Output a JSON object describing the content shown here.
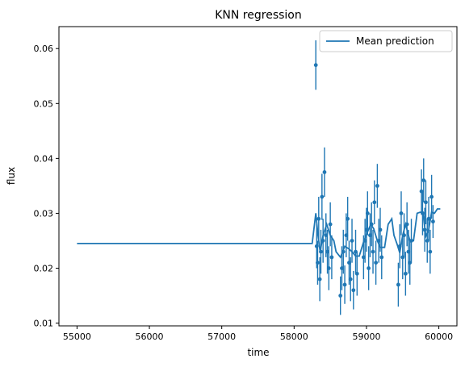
{
  "chart_data": {
    "type": "scatter",
    "title": "KNN regression",
    "xlabel": "time",
    "ylabel": "flux",
    "xlim": [
      54750,
      60250
    ],
    "ylim": [
      0.0095,
      0.064
    ],
    "xticks": [
      55000,
      56000,
      57000,
      58000,
      59000,
      60000
    ],
    "yticks": [
      0.01,
      0.02,
      0.03,
      0.04,
      0.05,
      0.06
    ],
    "ytick_labels": [
      "0.01",
      "0.02",
      "0.03",
      "0.04",
      "0.05",
      "0.06"
    ],
    "grid": false,
    "legend": {
      "placement": "top-right",
      "entries": [
        "Mean prediction"
      ]
    },
    "colors": {
      "series": "#1f77b4"
    },
    "series": [
      {
        "name": "Mean prediction",
        "kind": "line",
        "x": [
          55000,
          58250,
          58300,
          58330,
          58360,
          58400,
          58450,
          58500,
          58550,
          58580,
          58640,
          58700,
          58760,
          58800,
          58850,
          58900,
          58960,
          59000,
          59060,
          59100,
          59150,
          59190,
          59250,
          59300,
          59350,
          59380,
          59420,
          59460,
          59500,
          59540,
          59600,
          59650,
          59700,
          59740,
          59780,
          59820,
          59860,
          59900,
          59940,
          59980,
          60020
        ],
        "y": [
          0.0245,
          0.0245,
          0.03,
          0.026,
          0.023,
          0.026,
          0.028,
          0.026,
          0.025,
          0.023,
          0.022,
          0.024,
          0.0235,
          0.023,
          0.0222,
          0.0222,
          0.0248,
          0.0262,
          0.028,
          0.0272,
          0.025,
          0.0238,
          0.0238,
          0.028,
          0.029,
          0.026,
          0.0245,
          0.0228,
          0.026,
          0.028,
          0.025,
          0.025,
          0.03,
          0.0302,
          0.0302,
          0.0258,
          0.027,
          0.0302,
          0.03,
          0.0308,
          0.0308
        ]
      },
      {
        "name": "",
        "kind": "errorbar",
        "x": [
          58300,
          58312,
          58325,
          58340,
          58355,
          58370,
          58385,
          58400,
          58420,
          58440,
          58460,
          58480,
          58500,
          58520,
          58640,
          58660,
          58680,
          58700,
          58720,
          58740,
          58760,
          58780,
          58800,
          58820,
          58850,
          58870,
          58960,
          58980,
          59000,
          59015,
          59030,
          59050,
          59070,
          59090,
          59110,
          59130,
          59150,
          59170,
          59190,
          59210,
          59440,
          59460,
          59480,
          59500,
          59520,
          59540,
          59560,
          59580,
          59600,
          59620,
          59760,
          59775,
          59790,
          59805,
          59820,
          59840,
          59860,
          59880,
          59900,
          59920
        ],
        "y": [
          0.057,
          0.024,
          0.021,
          0.029,
          0.018,
          0.023,
          0.033,
          0.025,
          0.0375,
          0.026,
          0.023,
          0.02,
          0.028,
          0.022,
          0.015,
          0.02,
          0.023,
          0.017,
          0.026,
          0.029,
          0.021,
          0.018,
          0.025,
          0.016,
          0.023,
          0.019,
          0.022,
          0.025,
          0.027,
          0.03,
          0.02,
          0.026,
          0.028,
          0.023,
          0.032,
          0.021,
          0.035,
          0.025,
          0.027,
          0.022,
          0.017,
          0.024,
          0.03,
          0.022,
          0.026,
          0.019,
          0.028,
          0.023,
          0.021,
          0.025,
          0.034,
          0.03,
          0.036,
          0.027,
          0.032,
          0.025,
          0.029,
          0.023,
          0.033,
          0.0285
        ],
        "err": [
          0.0045,
          0.004,
          0.004,
          0.004,
          0.004,
          0.004,
          0.0042,
          0.004,
          0.0045,
          0.004,
          0.004,
          0.004,
          0.004,
          0.004,
          0.0035,
          0.004,
          0.004,
          0.0035,
          0.004,
          0.004,
          0.004,
          0.004,
          0.004,
          0.0035,
          0.004,
          0.004,
          0.004,
          0.004,
          0.004,
          0.004,
          0.004,
          0.004,
          0.004,
          0.004,
          0.004,
          0.004,
          0.004,
          0.004,
          0.004,
          0.004,
          0.004,
          0.004,
          0.004,
          0.004,
          0.004,
          0.004,
          0.004,
          0.004,
          0.004,
          0.004,
          0.004,
          0.004,
          0.004,
          0.004,
          0.004,
          0.004,
          0.004,
          0.004,
          0.004,
          0.003
        ]
      }
    ]
  }
}
